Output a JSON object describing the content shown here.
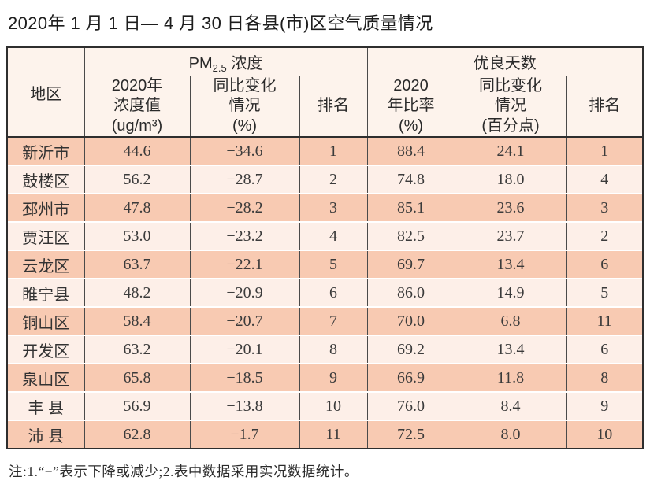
{
  "page": {
    "title": "2020年 1 月 1 日— 4 月 30 日各县(市)区空气质量情况",
    "note": "注:1.“−”表示下降或减少;2.表中数据采用实况数据统计。"
  },
  "colors": {
    "row_dark": "#f8cab2",
    "row_light": "#fdefe8",
    "header_bg": "#fdf3ec",
    "border_dark": "#2e2e2e",
    "border_mid": "#4a4a4a"
  },
  "table": {
    "header": {
      "region": "地区",
      "pm_group_main": "PM",
      "pm_group_sub": "2.5",
      "pm_group_rest": " 浓度",
      "good_group": "优良天数",
      "pm_value_col": "2020年\n浓度值\n(ug/m³)",
      "pm_change_col": "同比变化\n情况\n(%)",
      "pm_rank_col": "排名",
      "good_rate_col": "2020\n年比率\n(%)",
      "good_change_col": "同比变化\n情况\n(百分点)",
      "good_rank_col": "排名"
    },
    "row_fields": [
      "region",
      "pm_value",
      "pm_change",
      "pm_rank",
      "good_rate",
      "good_change",
      "good_rank"
    ],
    "rows": [
      {
        "region": "新沂市",
        "pm_value": "44.6",
        "pm_change": "−34.6",
        "pm_rank": "1",
        "good_rate": "88.4",
        "good_change": "24.1",
        "good_rank": "1"
      },
      {
        "region": "鼓楼区",
        "pm_value": "56.2",
        "pm_change": "−28.7",
        "pm_rank": "2",
        "good_rate": "74.8",
        "good_change": "18.0",
        "good_rank": "4"
      },
      {
        "region": "邳州市",
        "pm_value": "47.8",
        "pm_change": "−28.2",
        "pm_rank": "3",
        "good_rate": "85.1",
        "good_change": "23.6",
        "good_rank": "3"
      },
      {
        "region": "贾汪区",
        "pm_value": "53.0",
        "pm_change": "−23.2",
        "pm_rank": "4",
        "good_rate": "82.5",
        "good_change": "23.7",
        "good_rank": "2"
      },
      {
        "region": "云龙区",
        "pm_value": "63.7",
        "pm_change": "−22.1",
        "pm_rank": "5",
        "good_rate": "69.7",
        "good_change": "13.4",
        "good_rank": "6"
      },
      {
        "region": "睢宁县",
        "pm_value": "48.2",
        "pm_change": "−20.9",
        "pm_rank": "6",
        "good_rate": "86.0",
        "good_change": "14.9",
        "good_rank": "5"
      },
      {
        "region": "铜山区",
        "pm_value": "58.4",
        "pm_change": "−20.7",
        "pm_rank": "7",
        "good_rate": "70.0",
        "good_change": "6.8",
        "good_rank": "11"
      },
      {
        "region": "开发区",
        "pm_value": "63.2",
        "pm_change": "−20.1",
        "pm_rank": "8",
        "good_rate": "69.2",
        "good_change": "13.4",
        "good_rank": "6"
      },
      {
        "region": "泉山区",
        "pm_value": "65.8",
        "pm_change": "−18.5",
        "pm_rank": "9",
        "good_rate": "66.9",
        "good_change": "11.8",
        "good_rank": "8"
      },
      {
        "region": "丰 县",
        "pm_value": "56.9",
        "pm_change": "−13.8",
        "pm_rank": "10",
        "good_rate": "76.0",
        "good_change": "8.4",
        "good_rank": "9"
      },
      {
        "region": "沛 县",
        "pm_value": "62.8",
        "pm_change": "−1.7",
        "pm_rank": "11",
        "good_rate": "72.5",
        "good_change": "8.0",
        "good_rank": "10"
      }
    ]
  }
}
